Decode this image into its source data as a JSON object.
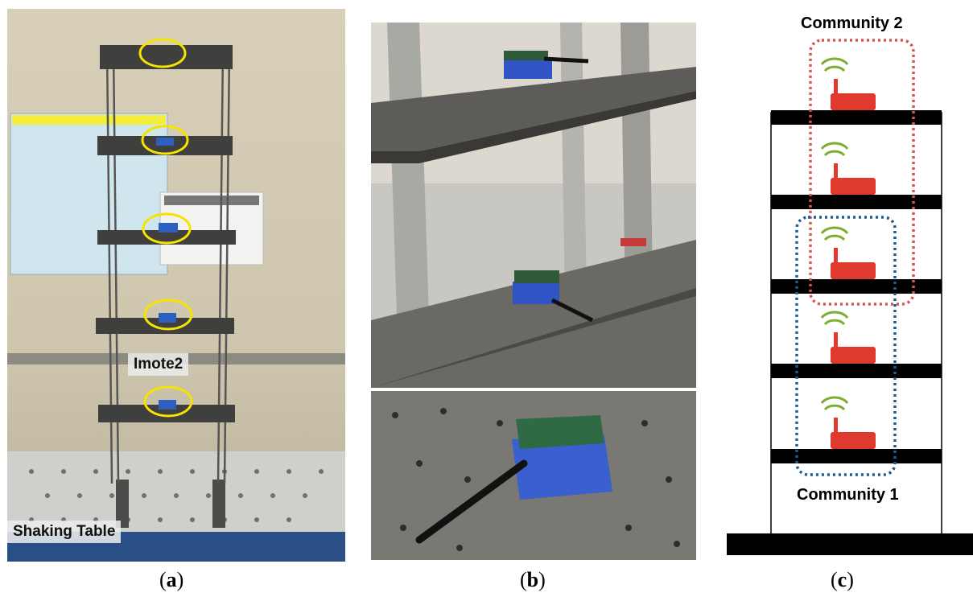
{
  "figure": {
    "panels": [
      {
        "id": "a",
        "caption_letter": "a",
        "labels": {
          "sensor": "Imote2",
          "table": "Shaking Table"
        }
      },
      {
        "id": "b",
        "caption_letter": "b"
      },
      {
        "id": "c",
        "caption_letter": "c",
        "labels": {
          "community_top": "Community 2",
          "community_bottom": "Community 1"
        }
      }
    ],
    "colors": {
      "sensor_red": "#e03a2e",
      "wifi_green": "#7cae32",
      "community2_dotted": "#d9534f",
      "community1_dotted": "#1f5c8b",
      "highlight_circle": "#f5e400"
    }
  }
}
